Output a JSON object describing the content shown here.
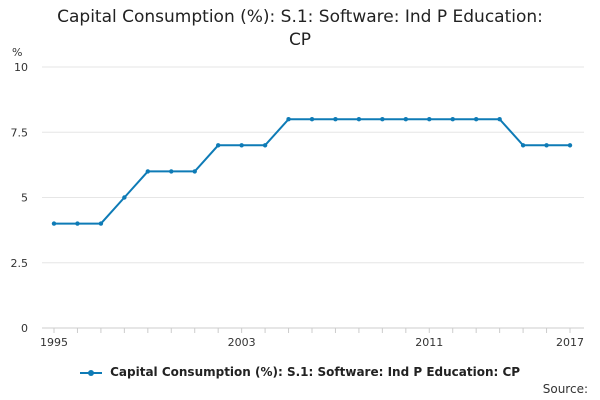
{
  "chart_data": {
    "type": "line",
    "title_lines": [
      "Capital Consumption (%): S.1: Software: Ind P Education:",
      "CP"
    ],
    "ylabel": "%",
    "xlabel": "",
    "ylim": [
      0,
      10
    ],
    "yticks": [
      0,
      2.5,
      5,
      7.5,
      10
    ],
    "ytick_labels": [
      "0",
      "2.5",
      "5",
      "7.5",
      "10"
    ],
    "xlim": [
      1995,
      2017
    ],
    "xticks": [
      1995,
      2003,
      2011,
      2017
    ],
    "grid": true,
    "legend_position": "bottom",
    "series": [
      {
        "name": "Capital Consumption (%): S.1: Software: Ind P Education: CP",
        "color": "#0e7bb6",
        "x": [
          1995,
          1996,
          1997,
          1998,
          1999,
          2000,
          2001,
          2002,
          2003,
          2004,
          2005,
          2006,
          2007,
          2008,
          2009,
          2010,
          2011,
          2012,
          2013,
          2014,
          2015,
          2016,
          2017
        ],
        "values": [
          4,
          4,
          4,
          5,
          6,
          6,
          6,
          7,
          7,
          7,
          8,
          8,
          8,
          8,
          8,
          8,
          8,
          8,
          8,
          8,
          7,
          7,
          7
        ]
      }
    ]
  },
  "source_label": "Source:"
}
